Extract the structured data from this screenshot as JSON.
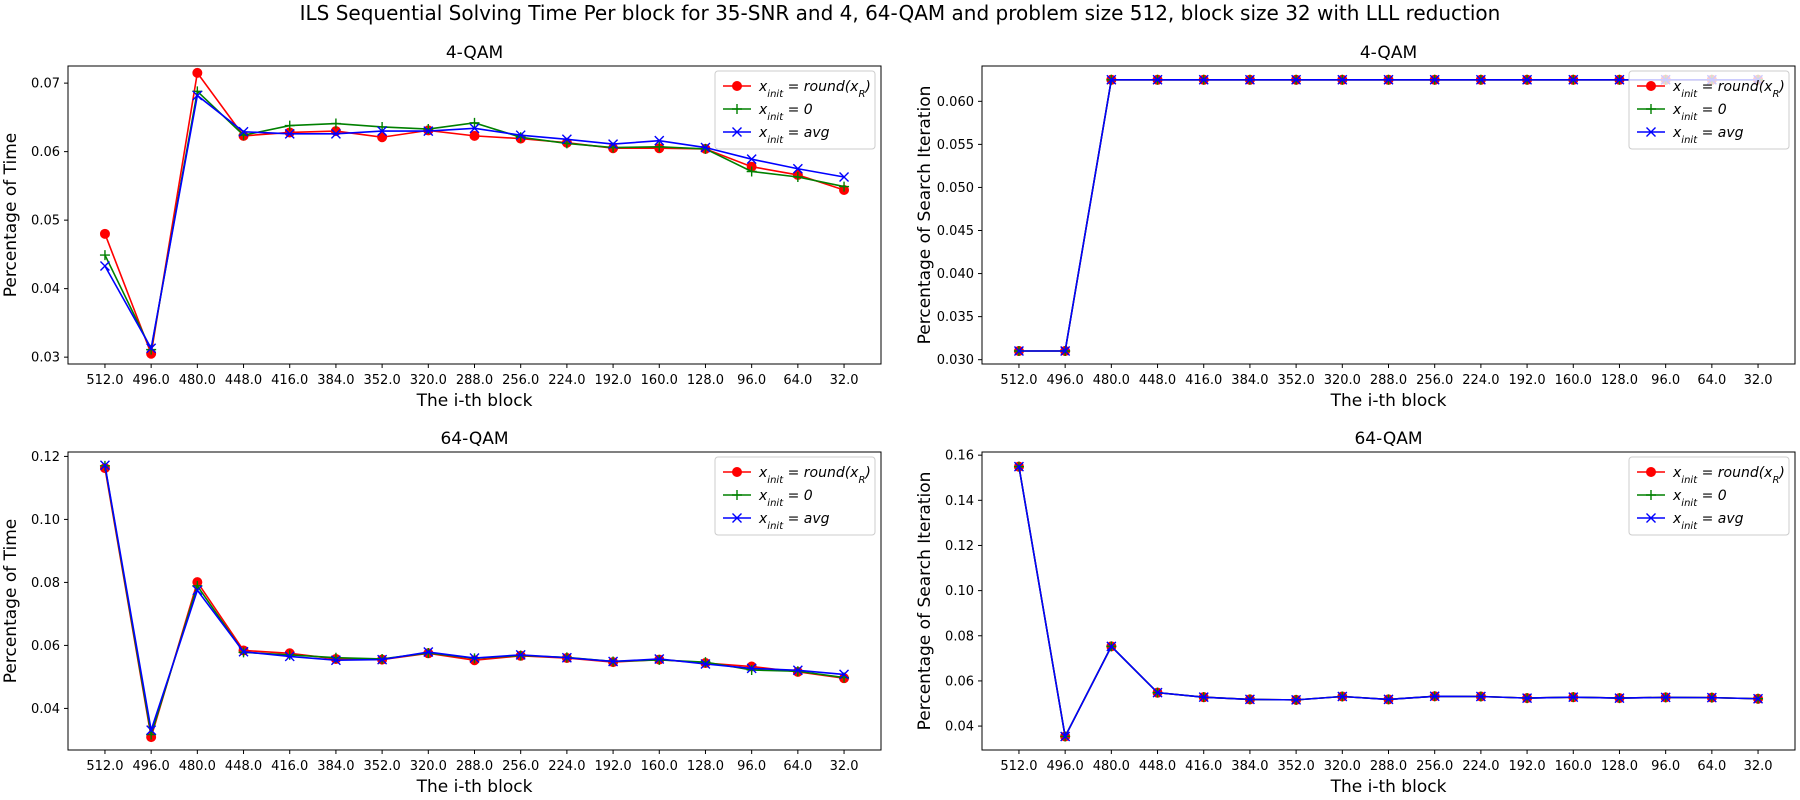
{
  "suptitle": "ILS Sequential Solving Time Per block for 35-SNR and 4, 64-QAM and problem size 512, block size 32 with LLL reduction",
  "colors": {
    "round": "#ff0000",
    "zero": "#008000",
    "avg": "#0000ff"
  },
  "legend_labels": [
    "x_init = round(x_R)",
    "x_init = 0",
    "x_init = avg"
  ],
  "chart_data": [
    {
      "type": "line",
      "title": "4-QAM",
      "xlabel": "The i-th block",
      "ylabel": "Percentage of Time",
      "categories": [
        "512.0",
        "496.0",
        "480.0",
        "448.0",
        "416.0",
        "384.0",
        "352.0",
        "320.0",
        "288.0",
        "256.0",
        "224.0",
        "192.0",
        "160.0",
        "128.0",
        "96.0",
        "64.0",
        "32.0"
      ],
      "ylim": [
        0.029,
        0.0725
      ],
      "yticks": [
        0.03,
        0.04,
        0.05,
        0.06,
        0.07
      ],
      "ytick_labels": [
        "0.03",
        "0.04",
        "0.05",
        "0.06",
        "0.07"
      ],
      "legend": "top-right",
      "series": [
        {
          "name": "x_init = round(x_R)",
          "color": "#ff0000",
          "marker": "circle",
          "values": [
            0.048,
            0.0305,
            0.0715,
            0.0623,
            0.0628,
            0.063,
            0.0621,
            0.0631,
            0.0623,
            0.0619,
            0.0613,
            0.0605,
            0.0605,
            0.0604,
            0.0578,
            0.0566,
            0.0544
          ]
        },
        {
          "name": "x_init = 0",
          "color": "#008000",
          "marker": "plus",
          "values": [
            0.0449,
            0.0311,
            0.0688,
            0.0624,
            0.0638,
            0.0641,
            0.0636,
            0.0633,
            0.0642,
            0.0621,
            0.0612,
            0.0606,
            0.0607,
            0.0604,
            0.0571,
            0.0563,
            0.0549
          ]
        },
        {
          "name": "x_init = avg",
          "color": "#0000ff",
          "marker": "x",
          "values": [
            0.0433,
            0.0313,
            0.0682,
            0.0629,
            0.0626,
            0.0626,
            0.063,
            0.063,
            0.0634,
            0.0624,
            0.0618,
            0.0611,
            0.0616,
            0.0606,
            0.0589,
            0.0575,
            0.0563
          ]
        }
      ]
    },
    {
      "type": "line",
      "title": "4-QAM",
      "xlabel": "The i-th block",
      "ylabel": "Percentage of Search Iteration",
      "categories": [
        "512.0",
        "496.0",
        "480.0",
        "448.0",
        "416.0",
        "384.0",
        "352.0",
        "320.0",
        "288.0",
        "256.0",
        "224.0",
        "192.0",
        "160.0",
        "128.0",
        "96.0",
        "64.0",
        "32.0"
      ],
      "ylim": [
        0.0295,
        0.0641
      ],
      "yticks": [
        0.03,
        0.035,
        0.04,
        0.045,
        0.05,
        0.055,
        0.06
      ],
      "ytick_labels": [
        "0.030",
        "0.035",
        "0.040",
        "0.045",
        "0.050",
        "0.055",
        "0.060"
      ],
      "legend": "top-right",
      "series": [
        {
          "name": "x_init = round(x_R)",
          "color": "#ff0000",
          "marker": "circle",
          "values": [
            0.03101,
            0.03101,
            0.0625,
            0.0625,
            0.0625,
            0.0625,
            0.0625,
            0.0625,
            0.0625,
            0.0625,
            0.0625,
            0.0625,
            0.0625,
            0.0625,
            0.0625,
            0.0625,
            0.0625
          ]
        },
        {
          "name": "x_init = 0",
          "color": "#008000",
          "marker": "plus",
          "values": [
            0.03101,
            0.03101,
            0.0625,
            0.0625,
            0.0625,
            0.0625,
            0.0625,
            0.0625,
            0.0625,
            0.0625,
            0.0625,
            0.0625,
            0.0625,
            0.0625,
            0.0625,
            0.0625,
            0.0625
          ]
        },
        {
          "name": "x_init = avg",
          "color": "#0000ff",
          "marker": "x",
          "values": [
            0.03101,
            0.03101,
            0.0625,
            0.0625,
            0.0625,
            0.0625,
            0.0625,
            0.0625,
            0.0625,
            0.0625,
            0.0625,
            0.0625,
            0.0625,
            0.0625,
            0.0625,
            0.0625,
            0.0625
          ]
        }
      ]
    },
    {
      "type": "line",
      "title": "64-QAM",
      "xlabel": "The i-th block",
      "ylabel": "Percentage of Time",
      "categories": [
        "512.0",
        "496.0",
        "480.0",
        "448.0",
        "416.0",
        "384.0",
        "352.0",
        "320.0",
        "288.0",
        "256.0",
        "224.0",
        "192.0",
        "160.0",
        "128.0",
        "96.0",
        "64.0",
        "32.0"
      ],
      "ylim": [
        0.0268,
        0.1214
      ],
      "yticks": [
        0.04,
        0.06,
        0.08,
        0.1,
        0.12
      ],
      "ytick_labels": [
        "0.04",
        "0.06",
        "0.08",
        "0.10",
        "0.12"
      ],
      "legend": "top-right",
      "series": [
        {
          "name": "x_init = round(x_R)",
          "color": "#ff0000",
          "marker": "circle",
          "values": [
            0.1163,
            0.0309,
            0.0801,
            0.0584,
            0.0575,
            0.0557,
            0.0555,
            0.0575,
            0.0553,
            0.0567,
            0.056,
            0.0547,
            0.0555,
            0.0544,
            0.0533,
            0.0516,
            0.0496
          ]
        },
        {
          "name": "x_init = 0",
          "color": "#008000",
          "marker": "plus",
          "values": [
            0.117,
            0.0317,
            0.0789,
            0.0578,
            0.057,
            0.0561,
            0.0557,
            0.0576,
            0.0559,
            0.0568,
            0.0562,
            0.0549,
            0.0554,
            0.0547,
            0.0522,
            0.0518,
            0.0498
          ]
        },
        {
          "name": "x_init = avg",
          "color": "#0000ff",
          "marker": "x",
          "values": [
            0.1172,
            0.0331,
            0.0775,
            0.058,
            0.0565,
            0.0553,
            0.0555,
            0.0579,
            0.056,
            0.057,
            0.0561,
            0.0549,
            0.0557,
            0.0541,
            0.0527,
            0.0521,
            0.0508
          ]
        }
      ]
    },
    {
      "type": "line",
      "title": "64-QAM",
      "xlabel": "The i-th block",
      "ylabel": "Percentage of Search Iteration",
      "categories": [
        "512.0",
        "496.0",
        "480.0",
        "448.0",
        "416.0",
        "384.0",
        "352.0",
        "320.0",
        "288.0",
        "256.0",
        "224.0",
        "192.0",
        "160.0",
        "128.0",
        "96.0",
        "64.0",
        "32.0"
      ],
      "ylim": [
        0.0294,
        0.1614
      ],
      "yticks": [
        0.04,
        0.06,
        0.08,
        0.1,
        0.12,
        0.14,
        0.16
      ],
      "ytick_labels": [
        "0.04",
        "0.06",
        "0.08",
        "0.10",
        "0.12",
        "0.14",
        "0.16"
      ],
      "legend": "top-right",
      "series": [
        {
          "name": "x_init = round(x_R)",
          "color": "#ff0000",
          "marker": "circle",
          "values": [
            0.1549,
            0.0354,
            0.0753,
            0.0548,
            0.0528,
            0.0518,
            0.0516,
            0.0531,
            0.0518,
            0.0532,
            0.0531,
            0.0524,
            0.0528,
            0.0524,
            0.0527,
            0.0526,
            0.0521
          ]
        },
        {
          "name": "x_init = 0",
          "color": "#008000",
          "marker": "plus",
          "values": [
            0.1549,
            0.0354,
            0.0753,
            0.0548,
            0.0528,
            0.0518,
            0.0516,
            0.0531,
            0.0518,
            0.0532,
            0.0531,
            0.0524,
            0.0528,
            0.0524,
            0.0527,
            0.0526,
            0.0521
          ]
        },
        {
          "name": "x_init = avg",
          "color": "#0000ff",
          "marker": "x",
          "values": [
            0.1549,
            0.0354,
            0.0753,
            0.0548,
            0.0528,
            0.0518,
            0.0516,
            0.0531,
            0.0518,
            0.0532,
            0.0531,
            0.0524,
            0.0528,
            0.0524,
            0.0527,
            0.0526,
            0.0521
          ]
        }
      ]
    }
  ]
}
